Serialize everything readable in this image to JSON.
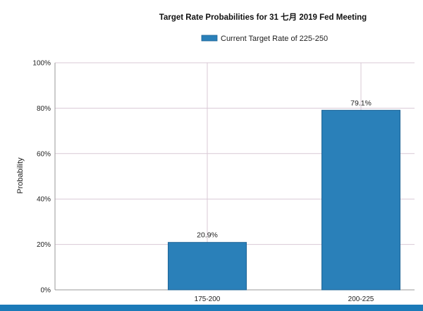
{
  "chart_data": {
    "type": "bar",
    "title": "Target Rate Probabilities for 31 七月 2019  Fed Meeting",
    "legend": {
      "entries": [
        "Current Target Rate of 225-250"
      ],
      "placement": "top-center"
    },
    "categories": [
      "175-200",
      "200-225"
    ],
    "series": [
      {
        "name": "Current Target Rate of 225-250",
        "values": [
          20.9,
          79.1
        ]
      }
    ],
    "data_labels": [
      "20.9%",
      "79.1%"
    ],
    "xlabel": "",
    "ylabel": "Probability",
    "ylim": [
      0,
      100
    ],
    "yticks": [
      "0%",
      "20%",
      "40%",
      "60%",
      "80%",
      "100%"
    ],
    "grid": true,
    "colors": {
      "bar": "#2a80b9",
      "bar_edge": "#1f6496",
      "grid": "#d9c9d6",
      "bottom_band": "#1b7ab8"
    }
  }
}
